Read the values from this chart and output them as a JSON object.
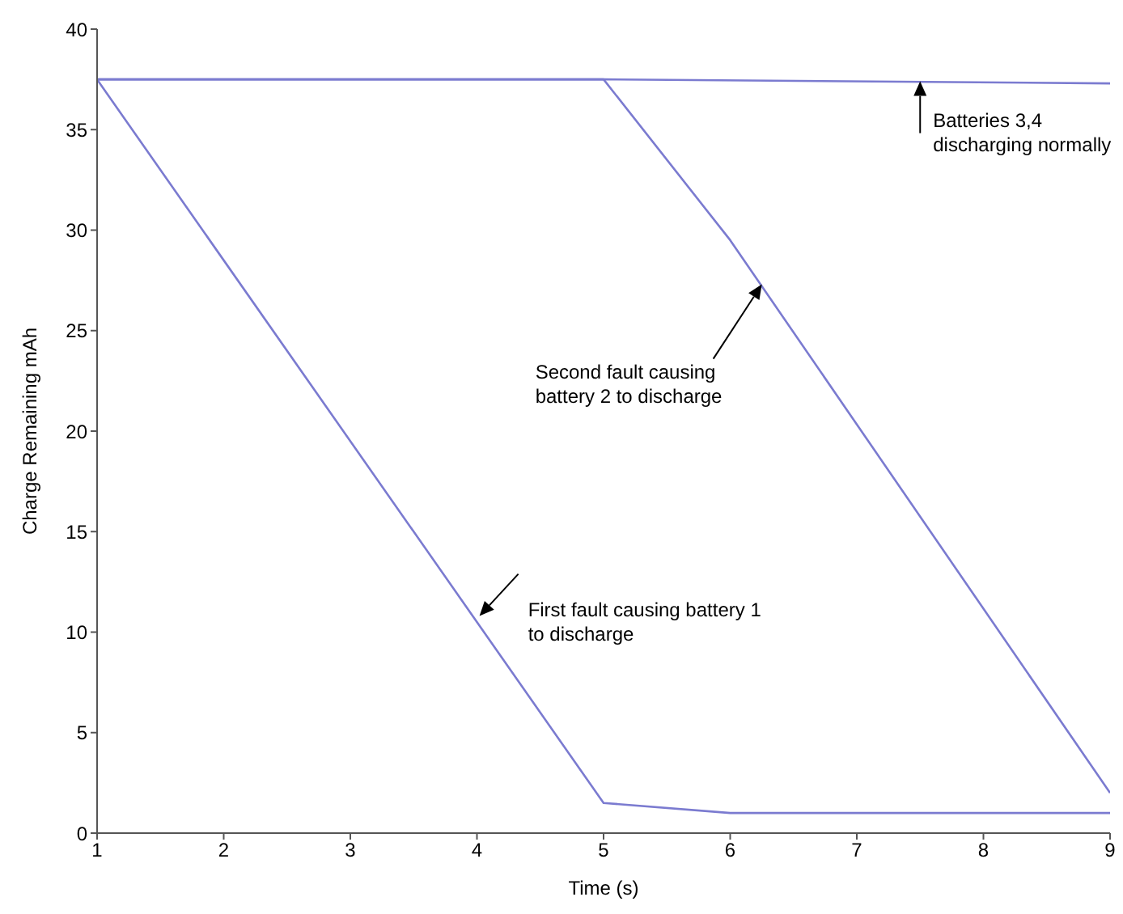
{
  "chart_data": {
    "type": "line",
    "xlabel": "Time (s)",
    "ylabel": "Charge Remaining mAh",
    "xlim": [
      1,
      9
    ],
    "xticks": [
      1,
      2,
      3,
      4,
      5,
      6,
      7,
      8,
      9
    ],
    "ylim": [
      0,
      40
    ],
    "yticks": [
      0,
      5,
      10,
      15,
      20,
      25,
      30,
      35,
      40
    ],
    "grid": false,
    "marker": "none",
    "line_style": "solid",
    "series": [
      {
        "color": "#7b7bd0",
        "x": [
          1,
          5,
          6,
          9
        ],
        "values": [
          37.5,
          1.5,
          1,
          1
        ]
      },
      {
        "color": "#7b7bd0",
        "x": [
          1,
          5,
          6,
          9
        ],
        "values": [
          37.5,
          37.5,
          29.5,
          2
        ]
      },
      {
        "color": "#7b7bd0",
        "x": [
          1,
          5,
          9
        ],
        "values": [
          37.5,
          37.5,
          37.3
        ]
      }
    ],
    "annotations": [
      {
        "text": "Batteries 3,4\ndischarging normally",
        "x": 7.5,
        "y": 37.4
      },
      {
        "text": "Second fault causing\nbattery 2 to discharge",
        "x": 6.25,
        "y": 27.3
      },
      {
        "text": "First fault causing battery 1\nto discharge",
        "x": 4.02,
        "y": 10.8
      }
    ]
  }
}
